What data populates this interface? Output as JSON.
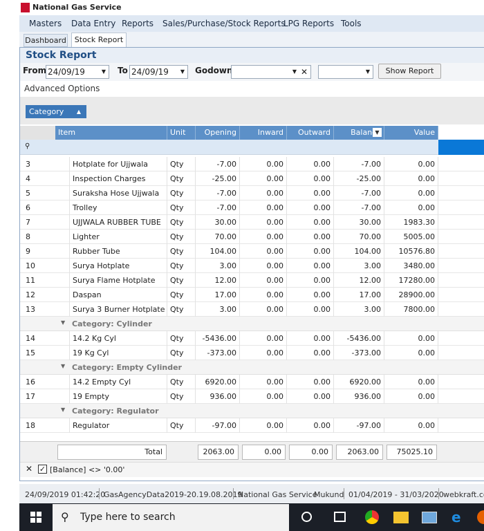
{
  "app": {
    "title": "National Gas Service"
  },
  "menu": [
    "Masters",
    "Data Entry",
    "Reports",
    "Sales/Purchase/Stock Reports",
    "LPG Reports",
    "Tools"
  ],
  "tabs": [
    "Dashboard",
    "Stock Report"
  ],
  "report": {
    "title": "Stock Report",
    "from_label": "From",
    "from": "24/09/19",
    "to_label": "To",
    "to": "24/09/19",
    "godown_label": "Godown",
    "button": "Show Report",
    "advanced": "Advanced Options",
    "group_chip": "Category"
  },
  "table": {
    "columns": [
      "Item",
      "Unit",
      "Opening",
      "Inward",
      "Outward",
      "Balance",
      "Value"
    ],
    "rows": [
      {
        "no": "3",
        "cells": [
          "Hotplate for Ujjwala",
          "Qty",
          "-7.00",
          "0.00",
          "0.00",
          "-7.00",
          "0.00"
        ]
      },
      {
        "no": "4",
        "cells": [
          "Inspection Charges",
          "Qty",
          "-25.00",
          "0.00",
          "0.00",
          "-25.00",
          "0.00"
        ]
      },
      {
        "no": "5",
        "cells": [
          "Suraksha Hose Ujjwala",
          "Qty",
          "-7.00",
          "0.00",
          "0.00",
          "-7.00",
          "0.00"
        ]
      },
      {
        "no": "6",
        "cells": [
          "Trolley",
          "Qty",
          "-7.00",
          "0.00",
          "0.00",
          "-7.00",
          "0.00"
        ]
      },
      {
        "no": "7",
        "cells": [
          "UJJWALA RUBBER TUBE",
          "Qty",
          "30.00",
          "0.00",
          "0.00",
          "30.00",
          "1983.30"
        ]
      },
      {
        "no": "8",
        "cells": [
          "Lighter",
          "Qty",
          "70.00",
          "0.00",
          "0.00",
          "70.00",
          "5005.00"
        ]
      },
      {
        "no": "9",
        "cells": [
          "Rubber Tube",
          "Qty",
          "104.00",
          "0.00",
          "0.00",
          "104.00",
          "10576.80"
        ]
      },
      {
        "no": "10",
        "cells": [
          "Surya Hotplate",
          "Qty",
          "3.00",
          "0.00",
          "0.00",
          "3.00",
          "3480.00"
        ]
      },
      {
        "no": "11",
        "cells": [
          "Surya Flame Hotplate",
          "Qty",
          "12.00",
          "0.00",
          "0.00",
          "12.00",
          "17280.00"
        ]
      },
      {
        "no": "12",
        "cells": [
          "Daspan",
          "Qty",
          "17.00",
          "0.00",
          "0.00",
          "17.00",
          "28900.00"
        ]
      },
      {
        "no": "13",
        "cells": [
          "Surya 3 Burner Hotplate",
          "Qty",
          "3.00",
          "0.00",
          "0.00",
          "3.00",
          "7800.00"
        ]
      },
      {
        "group": "Category: Cylinder"
      },
      {
        "no": "14",
        "cells": [
          "14.2 Kg Cyl",
          "Qty",
          "-5436.00",
          "0.00",
          "0.00",
          "-5436.00",
          "0.00"
        ]
      },
      {
        "no": "15",
        "cells": [
          "19 Kg Cyl",
          "Qty",
          "-373.00",
          "0.00",
          "0.00",
          "-373.00",
          "0.00"
        ]
      },
      {
        "group": "Category: Empty Cylinder"
      },
      {
        "no": "16",
        "cells": [
          "14.2 Empty Cyl",
          "Qty",
          "6920.00",
          "0.00",
          "0.00",
          "6920.00",
          "0.00"
        ]
      },
      {
        "no": "17",
        "cells": [
          "19 Empty",
          "Qty",
          "936.00",
          "0.00",
          "0.00",
          "936.00",
          "0.00"
        ]
      },
      {
        "group": "Category: Regulator"
      },
      {
        "no": "18",
        "cells": [
          "Regulator",
          "Qty",
          "-97.00",
          "0.00",
          "0.00",
          "-97.00",
          "0.00"
        ]
      }
    ],
    "totals": {
      "label": "Total",
      "values": [
        "2063.00",
        "0.00",
        "0.00",
        "2063.00",
        "75025.10"
      ]
    }
  },
  "filter": "[Balance] <> '0.00'",
  "status": [
    "24/09/2019 01:42:20",
    "GasAgencyData2019-20.19.08.2019",
    "National Gas Service",
    "Mukund",
    "01/04/2019 - 31/03/2020",
    "webkraft.com"
  ],
  "taskbar": {
    "search": "Type here to search"
  }
}
